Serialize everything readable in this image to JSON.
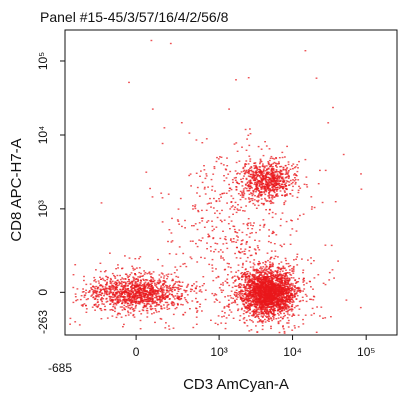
{
  "chart_data": {
    "type": "scatter",
    "title": "Panel #15-45/3/57/16/4/2/56/8",
    "xlabel": "CD3 AmCyan-A",
    "ylabel": "CD8 APC-H7-A",
    "x_ticks": [
      {
        "label": "-685",
        "pos": -685
      },
      {
        "label": "0",
        "pos": 0
      },
      {
        "label": "10³",
        "pos": 1000
      },
      {
        "label": "10⁴",
        "pos": 10000
      },
      {
        "label": "10⁵",
        "pos": 100000
      }
    ],
    "y_ticks": [
      {
        "label": "-263",
        "pos": -263
      },
      {
        "label": "0",
        "pos": 0
      },
      {
        "label": "10³",
        "pos": 1000
      },
      {
        "label": "10⁴",
        "pos": 10000
      },
      {
        "label": "10⁵",
        "pos": 100000
      }
    ],
    "xlim": [
      -685,
      262144
    ],
    "ylim": [
      -263,
      262144
    ],
    "x_scale": "biexponential",
    "y_scale": "biexponential",
    "grid": false,
    "marker_color": "#e8181c",
    "populations": [
      {
        "center_x": 4500,
        "center_y": 0,
        "approx_events": 2600
      },
      {
        "center_x": 0,
        "center_y": 0,
        "approx_events": 1300
      },
      {
        "center_x": 4500,
        "center_y": 2500,
        "approx_events": 750
      },
      {
        "center_x": 1500,
        "center_y": 600,
        "approx_events": 450
      }
    ]
  }
}
